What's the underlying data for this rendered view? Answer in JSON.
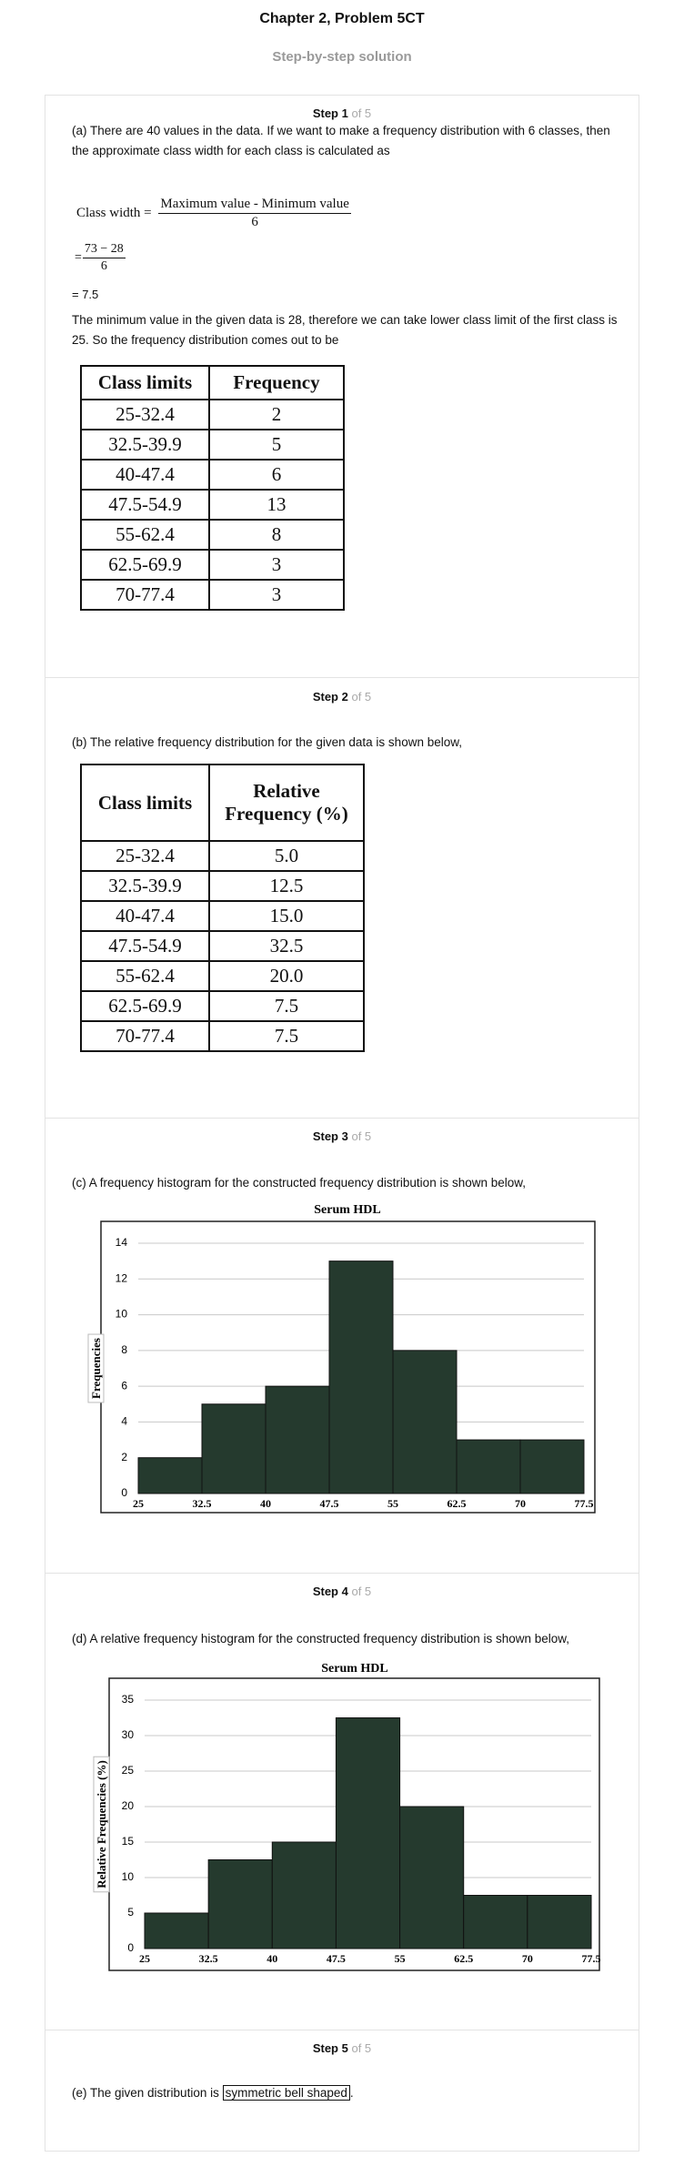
{
  "header": {
    "title": "Chapter 2, Problem 5CT",
    "subtitle": "Step-by-step solution"
  },
  "steps": [
    {
      "label": "Step 1",
      "total": "of 5",
      "intro": "(a) There are 40 values in the data. If we want to make a frequency distribution with 6 classes, then the approximate class width for each class is calculated as",
      "formula": {
        "lhs": "Class width =",
        "num": "Maximum value - Minimum value",
        "den": "6"
      },
      "formula2": {
        "lhs": "=",
        "num": "73 − 28",
        "den": "6"
      },
      "result": "= 7.5",
      "text": "The minimum value in the given data is 28, therefore we can take lower class limit of the first class is 25. So the frequency distribution comes out to be",
      "table": {
        "header": [
          "Class limits",
          "Frequency"
        ],
        "rows": [
          [
            "25-32.4",
            "2"
          ],
          [
            "32.5-39.9",
            "5"
          ],
          [
            "40-47.4",
            "6"
          ],
          [
            "47.5-54.9",
            "13"
          ],
          [
            "55-62.4",
            "8"
          ],
          [
            "62.5-69.9",
            "3"
          ],
          [
            "70-77.4",
            "3"
          ]
        ]
      }
    },
    {
      "label": "Step 2",
      "total": "of 5",
      "intro": "(b) The relative frequency distribution for the given data is shown below,",
      "table": {
        "header": [
          "Class limits",
          "Relative Frequency (%)"
        ],
        "rows": [
          [
            "25-32.4",
            "5.0"
          ],
          [
            "32.5-39.9",
            "12.5"
          ],
          [
            "40-47.4",
            "15.0"
          ],
          [
            "47.5-54.9",
            "32.5"
          ],
          [
            "55-62.4",
            "20.0"
          ],
          [
            "62.5-69.9",
            "7.5"
          ],
          [
            "70-77.4",
            "7.5"
          ]
        ]
      }
    },
    {
      "label": "Step 3",
      "total": "of 5",
      "intro": "(c) A frequency histogram for the constructed frequency distribution is shown below,"
    },
    {
      "label": "Step 4",
      "total": "of 5",
      "intro": "(d) A relative frequency histogram for the constructed frequency distribution is shown below,"
    },
    {
      "label": "Step 5",
      "total": "of 5",
      "intro": "(e) The given distribution is",
      "answer": "symmetric bell shaped",
      "end": "."
    }
  ],
  "chart_data": [
    {
      "type": "histogram",
      "title": "Serum HDL",
      "y_label": "Frequencies",
      "bins": [
        25,
        32.5,
        40,
        47.5,
        55,
        62.5,
        70,
        77.5
      ],
      "values": [
        2,
        5,
        6,
        13,
        8,
        3,
        3
      ],
      "color": "#253a2e",
      "xticks": [
        25,
        32.5,
        40,
        47.5,
        55,
        62.5,
        70,
        77.5
      ],
      "xlim": [
        25,
        77.5
      ],
      "ylim": [
        0,
        14
      ],
      "yticks": [
        0,
        2,
        4,
        6,
        8,
        10,
        12,
        14
      ],
      "grid": true
    },
    {
      "type": "histogram",
      "title": "Serum HDL",
      "y_label": "Relative Frequencies (%)",
      "bins": [
        25,
        32.5,
        40,
        47.5,
        55,
        62.5,
        70,
        77.5
      ],
      "values": [
        5,
        12.5,
        15,
        32.5,
        20,
        7.5,
        7.5
      ],
      "color": "#253a2e",
      "xticks": [
        25,
        32.5,
        40,
        47.5,
        55,
        62.5,
        70,
        77.5
      ],
      "xlim": [
        25,
        77.5
      ],
      "ylim": [
        0,
        35
      ],
      "yticks": [
        0,
        5,
        10,
        15,
        20,
        25,
        30,
        35
      ],
      "grid": true
    }
  ]
}
